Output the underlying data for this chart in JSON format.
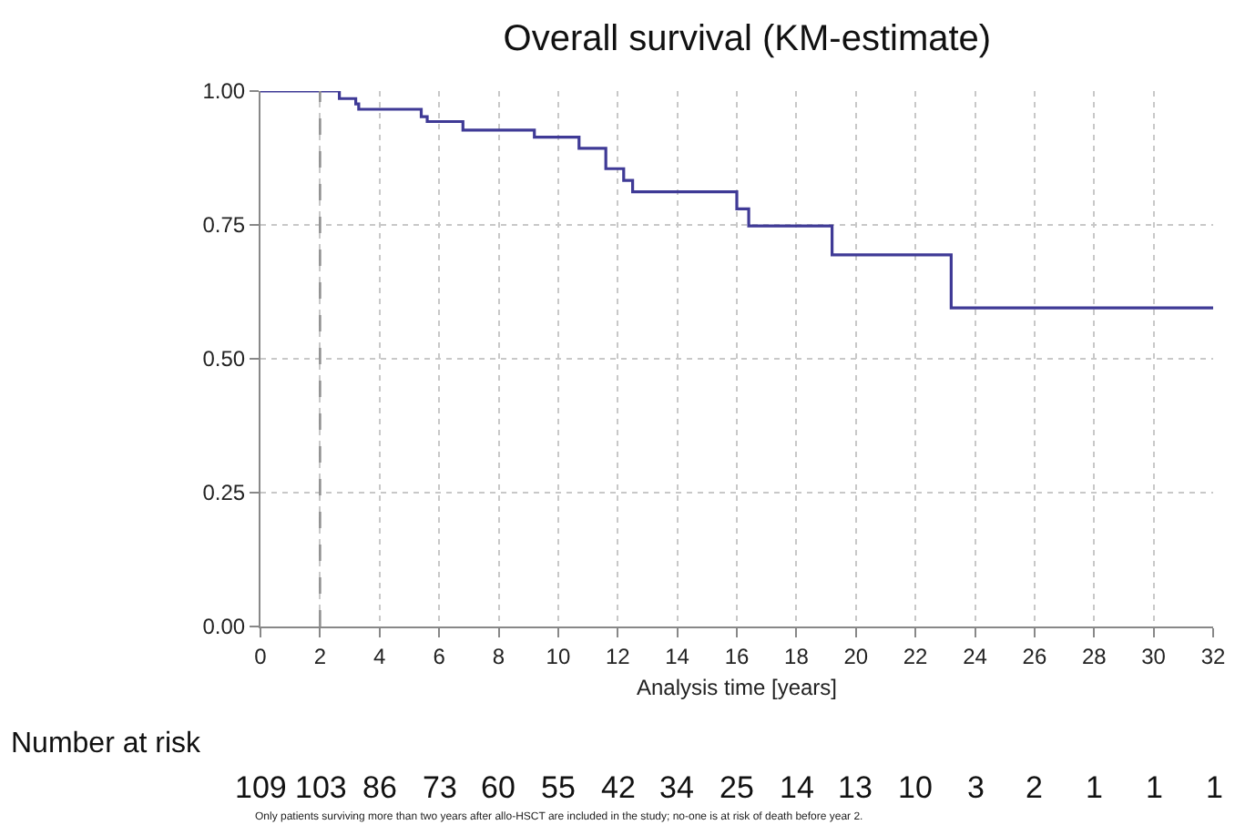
{
  "chart_data": {
    "type": "step",
    "title": "Overall survival (KM-estimate)",
    "xlabel": "Analysis time [years]",
    "x": [
      0,
      2.65,
      3.2,
      3.3,
      5.4,
      5.6,
      6.8,
      9.2,
      10.7,
      11.6,
      12.2,
      12.5,
      16.0,
      16.4,
      19.2,
      23.2,
      32
    ],
    "series": [
      {
        "color": "#3f3a96",
        "values": [
          1.0,
          0.986,
          0.976,
          0.966,
          0.952,
          0.943,
          0.927,
          0.914,
          0.893,
          0.855,
          0.833,
          0.812,
          0.78,
          0.748,
          0.694,
          0.595,
          0.595
        ]
      }
    ],
    "xlim": [
      0,
      32
    ],
    "xticks": [
      0,
      2,
      4,
      6,
      8,
      10,
      12,
      14,
      16,
      18,
      20,
      22,
      24,
      26,
      28,
      30,
      32
    ],
    "ylim": [
      0,
      1
    ],
    "yticks": [
      {
        "value": 0,
        "label": "0.00"
      },
      {
        "value": 0.25,
        "label": "0.25"
      },
      {
        "value": 0.5,
        "label": "0.50"
      },
      {
        "value": 0.75,
        "label": "0.75"
      },
      {
        "value": 1,
        "label": "1.00"
      }
    ],
    "grid": true,
    "line_style": "solid",
    "ref_lines": [
      {
        "axis": "x",
        "value": 2,
        "color": "#909090",
        "line_style": "dashed"
      }
    ],
    "annotations": [
      "Number at risk",
      "109",
      "103",
      "86",
      "73",
      "60",
      "55",
      "42",
      "34",
      "25",
      "14",
      "13",
      "10",
      "3",
      "2",
      "1",
      "1",
      "1",
      "Only patients surviving more than two years after allo-HSCT are included in the study; no-one is at risk of death before year 2."
    ]
  }
}
